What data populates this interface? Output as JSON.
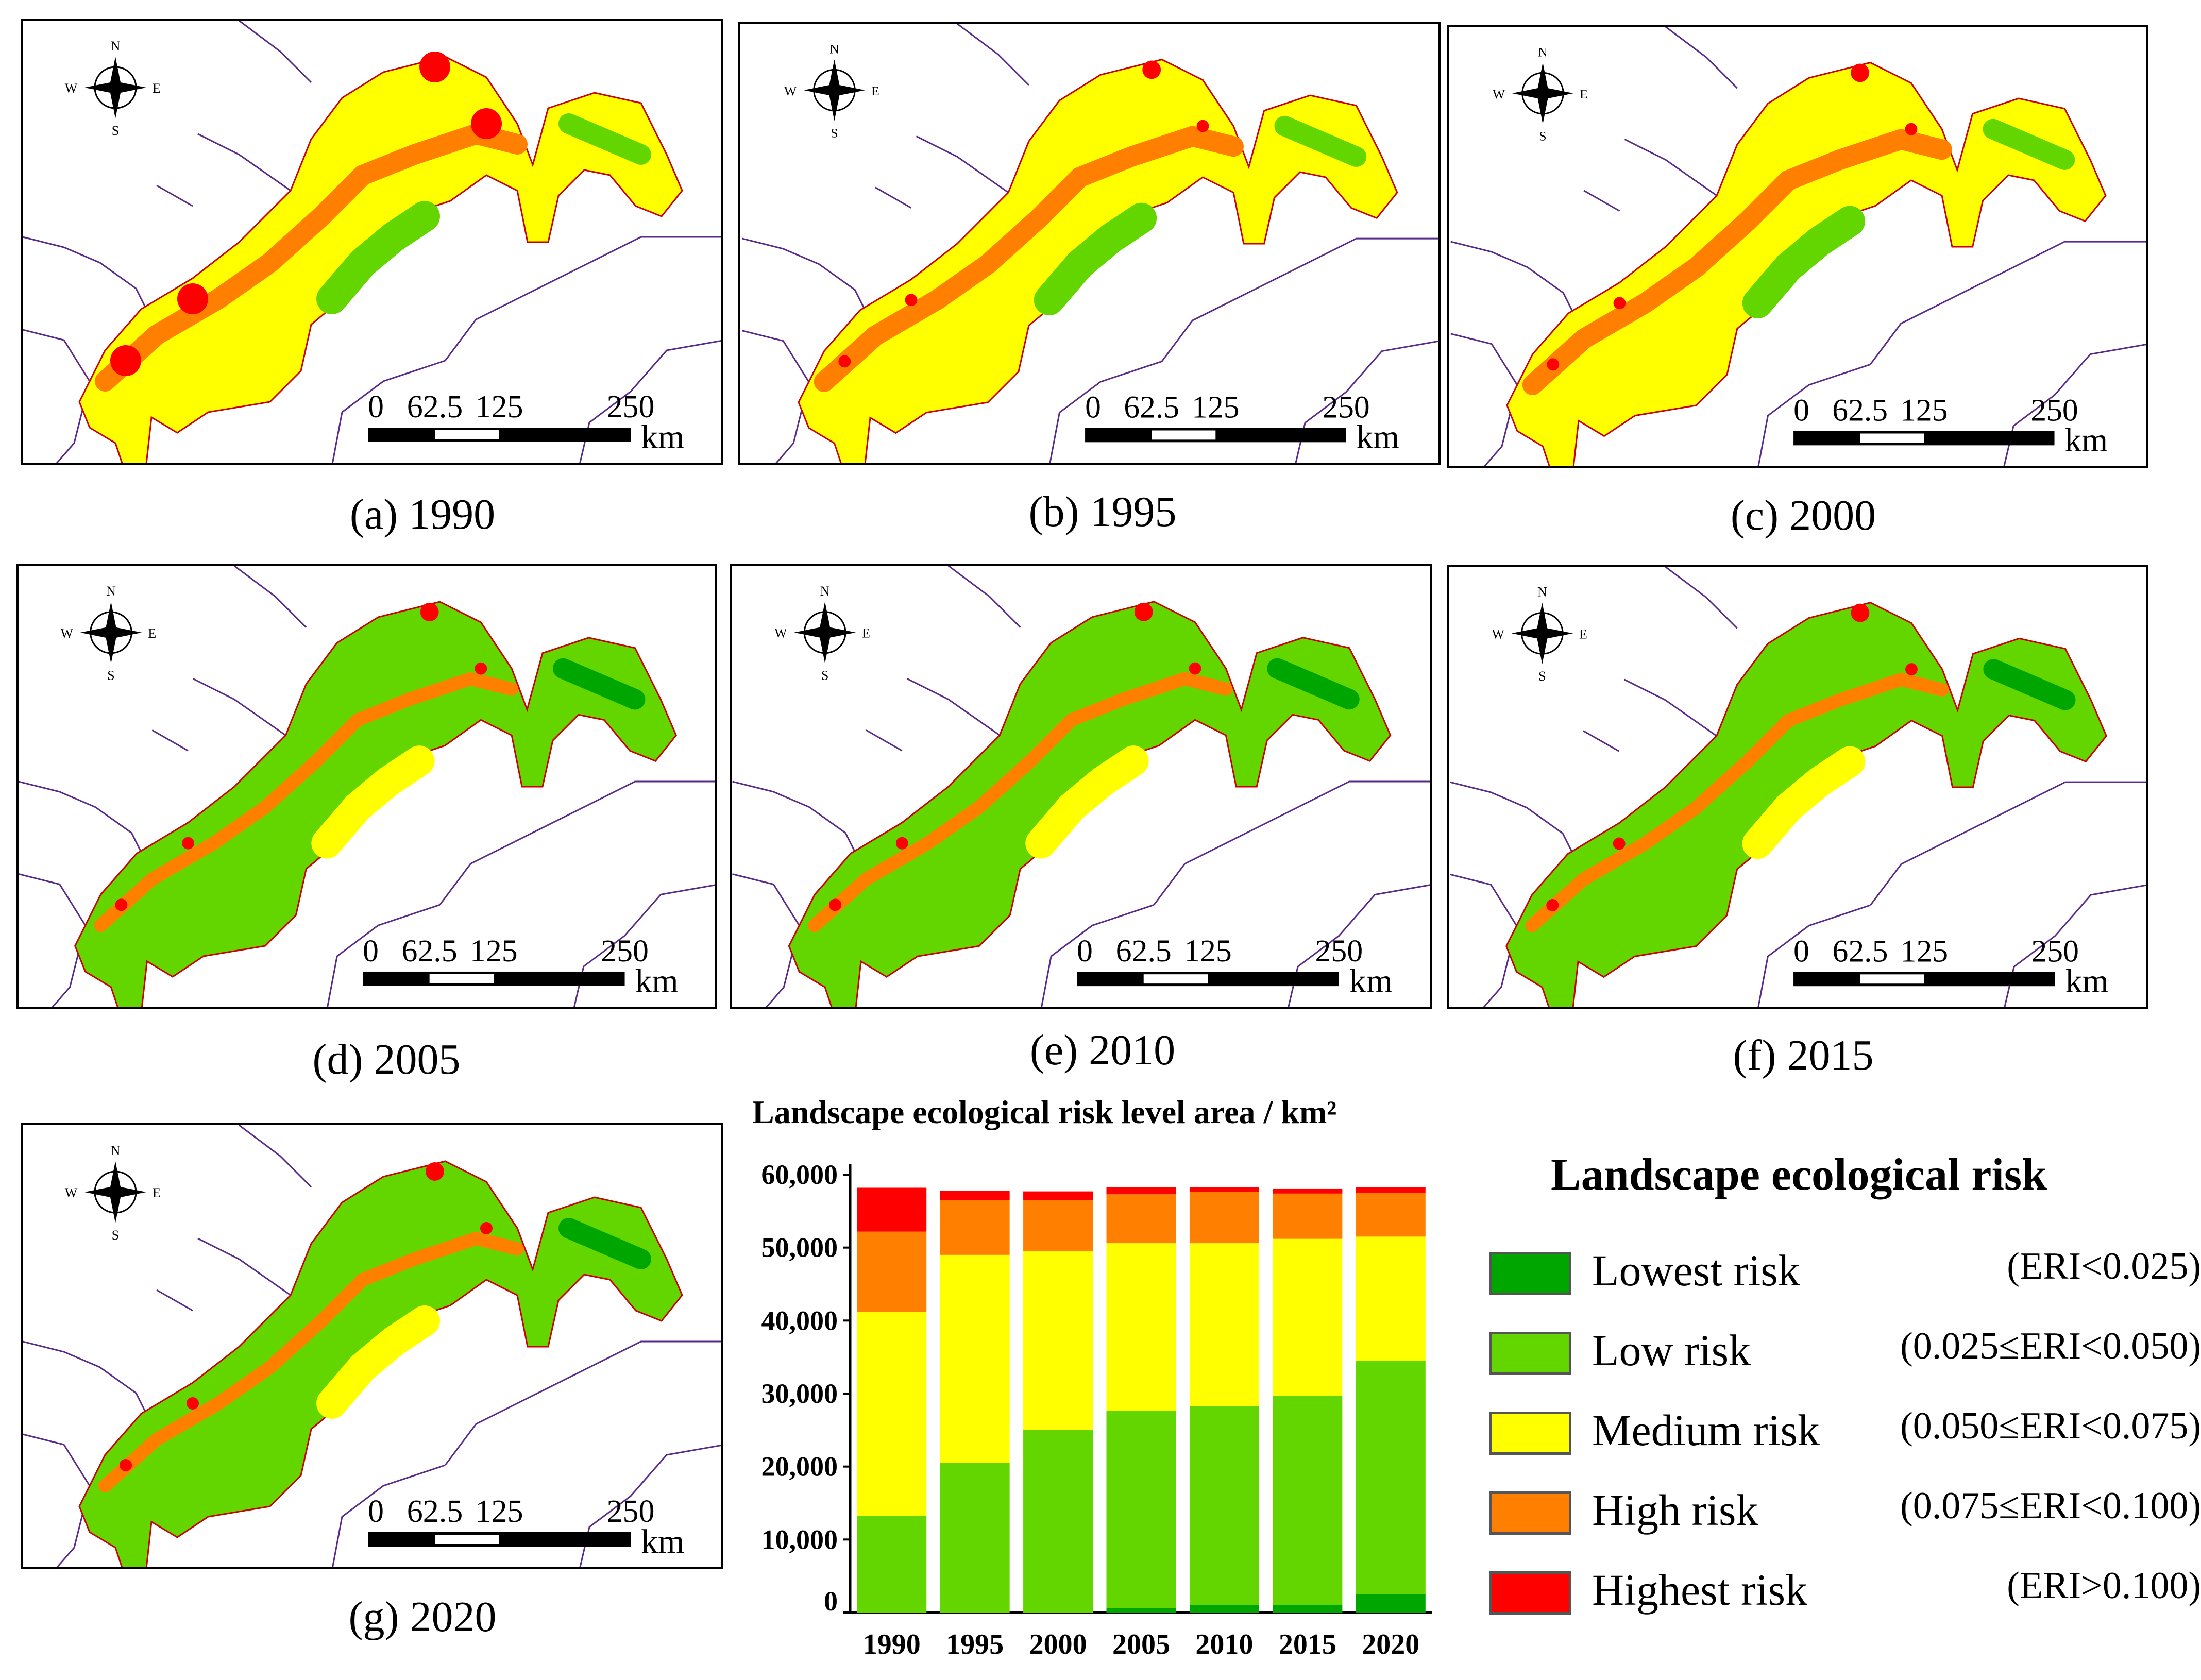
{
  "maps": [
    {
      "caption": "(a) 1990"
    },
    {
      "caption": "(b) 1995"
    },
    {
      "caption": "(c) 2000"
    },
    {
      "caption": "(d) 2005"
    },
    {
      "caption": "(e) 2010"
    },
    {
      "caption": "(f) 2015"
    },
    {
      "caption": "(g) 2020"
    }
  ],
  "compass": {
    "n": "N",
    "s": "S",
    "e": "E",
    "w": "W"
  },
  "scalebar": {
    "t0": "0",
    "t1": "62.5",
    "t2": "125",
    "t3": "250",
    "unit": "km"
  },
  "chart_data": {
    "type": "bar",
    "stacked": true,
    "title": "Landscape ecological risk level area / km²",
    "categories": [
      "1990",
      "1995",
      "2000",
      "2005",
      "2010",
      "2015",
      "2020"
    ],
    "ylim": [
      0,
      60000
    ],
    "yticks": [
      "0",
      "10,000",
      "20,000",
      "30,000",
      "40,000",
      "50,000",
      "60,000"
    ],
    "grid": false,
    "series": [
      {
        "name": "Lowest risk",
        "color": "#00a600",
        "values": [
          0,
          0,
          0,
          600,
          1000,
          1000,
          2500
        ]
      },
      {
        "name": "Low risk",
        "color": "#63d600",
        "values": [
          13200,
          20500,
          25000,
          27000,
          27300,
          28700,
          32000
        ]
      },
      {
        "name": "Medium risk",
        "color": "#ffff00",
        "values": [
          28000,
          28500,
          24500,
          23000,
          22300,
          21500,
          17000
        ]
      },
      {
        "name": "High risk",
        "color": "#ff8000",
        "values": [
          11000,
          7500,
          7000,
          6700,
          7000,
          6200,
          6000
        ]
      },
      {
        "name": "Highest risk",
        "color": "#ff0000",
        "values": [
          6000,
          1300,
          1200,
          1000,
          700,
          700,
          800
        ]
      }
    ]
  },
  "legend": {
    "title": "Landscape ecological risk",
    "items": [
      {
        "label": "Lowest risk",
        "range": "(ERI<0.025)",
        "color": "#00a600"
      },
      {
        "label": "Low risk",
        "range": "(0.025≤ERI<0.050)",
        "color": "#63d600"
      },
      {
        "label": "Medium risk",
        "range": "(0.050≤ERI<0.075)",
        "color": "#ffff00"
      },
      {
        "label": "High risk",
        "range": "(0.075≤ERI<0.100)",
        "color": "#ff8000"
      },
      {
        "label": "Highest risk",
        "range": "(ERI>0.100)",
        "color": "#ff0000"
      }
    ]
  }
}
